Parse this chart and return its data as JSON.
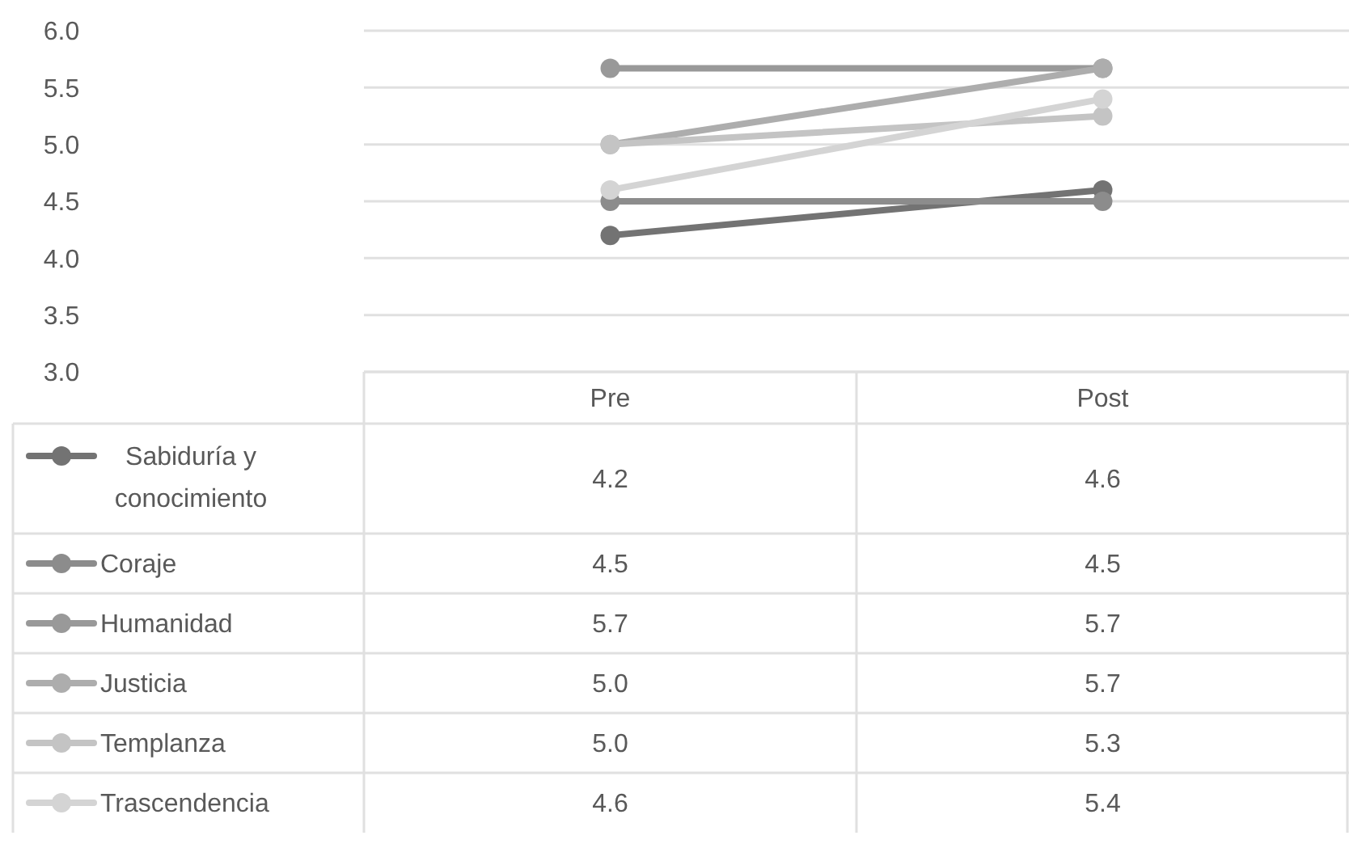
{
  "chart_data": {
    "type": "line",
    "categories": [
      "Pre",
      "Post"
    ],
    "series": [
      {
        "name": "Sabiduría y conocimiento",
        "color": "#737373",
        "values": [
          4.2,
          4.6
        ],
        "value_labels": [
          "4.2",
          "4.6"
        ]
      },
      {
        "name": "Coraje",
        "color": "#8c8c8c",
        "values": [
          4.5,
          4.5
        ],
        "value_labels": [
          "4.5",
          "4.5"
        ]
      },
      {
        "name": "Humanidad",
        "color": "#999999",
        "values": [
          5.67,
          5.67
        ],
        "value_labels": [
          "5.7",
          "5.7"
        ]
      },
      {
        "name": "Justicia",
        "color": "#adadad",
        "values": [
          5.0,
          5.67
        ],
        "value_labels": [
          "5.0",
          "5.7"
        ]
      },
      {
        "name": "Templanza",
        "color": "#c4c4c4",
        "values": [
          5.0,
          5.25
        ],
        "value_labels": [
          "5.0",
          "5.3"
        ]
      },
      {
        "name": "Trascendencia",
        "color": "#d4d4d4",
        "values": [
          4.6,
          5.4
        ],
        "value_labels": [
          "4.6",
          "5.4"
        ]
      }
    ],
    "ylim": [
      3,
      6
    ],
    "yticks": [
      {
        "value": 3,
        "label": "3.0"
      },
      {
        "value": 3.5,
        "label": "3.5"
      },
      {
        "value": 4,
        "label": "4.0"
      },
      {
        "value": 4.5,
        "label": "4.5"
      },
      {
        "value": 5,
        "label": "5.0"
      },
      {
        "value": 5.5,
        "label": "5.5"
      },
      {
        "value": 6,
        "label": "6.0"
      }
    ],
    "grid": true,
    "legend": "bottom",
    "marker": "circle",
    "line_style": "solid"
  }
}
